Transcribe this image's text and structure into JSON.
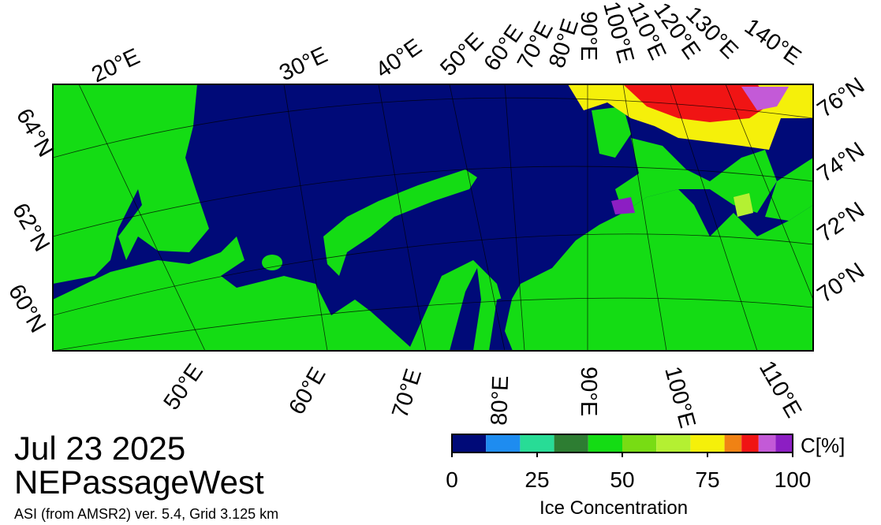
{
  "header": {
    "date": "Jul 23 2025",
    "region": "NEPassageWest",
    "source": "ASI (from AMSR2) ver. 5.4,  Grid 3.125 km"
  },
  "graticule": {
    "top": [
      "20°E",
      "30°E",
      "40°E",
      "50°E",
      "60°E",
      "70°E",
      "80°E",
      "90°E",
      "100°E",
      "110°E",
      "120°E",
      "130°E",
      "140°E"
    ],
    "right": [
      "76°N",
      "74°N",
      "72°N",
      "70°N"
    ],
    "left": [
      "64°N",
      "62°N",
      "60°N"
    ],
    "bottom": [
      "50°E",
      "60°E",
      "70°E",
      "80°E",
      "90°E",
      "100°E",
      "110°E"
    ]
  },
  "colorbar": {
    "label": "Ice Concentration",
    "unit": "C[%]",
    "bounds": [
      0,
      10,
      20,
      30,
      40,
      50,
      60,
      70,
      80,
      85,
      90,
      95,
      100
    ],
    "colors": [
      "#000a78",
      "#1e8cf0",
      "#28dc96",
      "#2d7d32",
      "#14dc14",
      "#78dc14",
      "#b4f032",
      "#f5f00a",
      "#f08214",
      "#f01414",
      "#c35ad7",
      "#8c1ec3"
    ],
    "lim": [
      0,
      100
    ],
    "ticks": [
      0,
      25,
      50,
      75,
      100
    ]
  }
}
